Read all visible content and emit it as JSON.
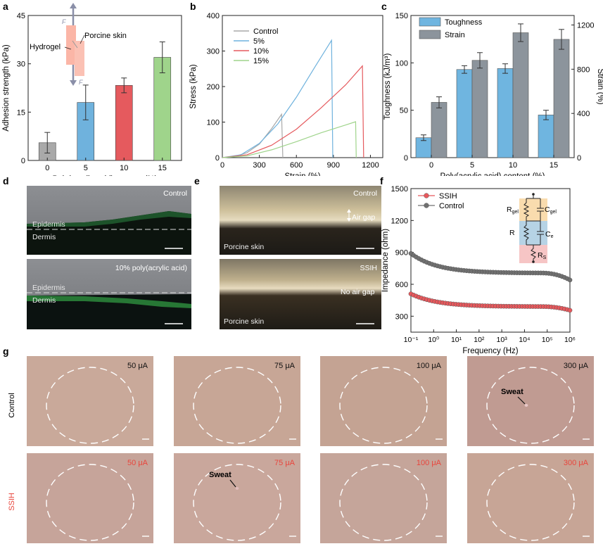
{
  "panels": {
    "a": {
      "letter": "a",
      "chart_index": 0,
      "inset": {
        "hydrogel": "Hydrogel",
        "porcine": "Porcine skin",
        "force": "F"
      }
    },
    "b": {
      "letter": "b",
      "chart_index": 1
    },
    "c": {
      "letter": "c",
      "chart_index": 2
    },
    "d": {
      "letter": "d",
      "top_label": "Control",
      "bottom_label": "10% poly(acrylic acid)",
      "epidermis": "Epidermis",
      "dermis": "Dermis"
    },
    "e": {
      "letter": "e",
      "top_label": "Control",
      "bottom_label": "SSIH",
      "air_gap": "Air gap",
      "no_air_gap": "No air gap",
      "skin": "Porcine skin"
    },
    "f": {
      "letter": "f",
      "chart_index": 3,
      "circuit": {
        "rgel": "R",
        "rgel_sub": "gel",
        "cgel": "C",
        "cgel_sub": "gel",
        "r": "R",
        "ce": "C",
        "ce_sub": "e",
        "rs": "R",
        "rs_sub": "S"
      }
    },
    "g": {
      "letter": "g",
      "row_control": "Control",
      "row_ssih": "SSIH",
      "currents": [
        "50 μA",
        "75 μA",
        "100 μA",
        "300 μA"
      ],
      "sweat": "Sweat"
    }
  },
  "colors": {
    "gray": "#a9a9a9",
    "blue": "#6fb2dd",
    "red": "#e55a5e",
    "green": "#9fd48b",
    "toughness": "#6fb5e0",
    "strain": "#8c949c",
    "ssih": "#e8585c",
    "control": "#707070",
    "red_text": "#e8453c"
  },
  "chart_data": [
    {
      "type": "bar",
      "panel": "a",
      "categories": [
        "0",
        "5",
        "10",
        "15"
      ],
      "values": [
        5.5,
        18,
        23.3,
        32
      ],
      "errors": [
        3.2,
        5.4,
        2.3,
        4.8
      ],
      "xlabel": "Poly(acrylic acid) content (%)",
      "ylabel": "Adhesion strength (kPa)",
      "ylim": [
        0,
        45
      ],
      "yticks": [
        0,
        15,
        30,
        45
      ]
    },
    {
      "type": "line",
      "panel": "b",
      "xlabel": "Strain (%)",
      "ylabel": "Stress (kPa)",
      "xlim": [
        0,
        1300
      ],
      "ylim": [
        0,
        400
      ],
      "xticks": [
        0,
        300,
        600,
        900,
        1200
      ],
      "yticks": [
        0,
        100,
        200,
        300,
        400
      ],
      "series": [
        {
          "name": "Control",
          "x": [
            0,
            100,
            200,
            300,
            400,
            480,
            490
          ],
          "y": [
            0,
            3,
            14,
            38,
            82,
            122,
            0
          ]
        },
        {
          "name": "5%",
          "x": [
            0,
            150,
            300,
            450,
            600,
            750,
            885,
            895
          ],
          "y": [
            0,
            8,
            40,
            95,
            170,
            255,
            330,
            0
          ]
        },
        {
          "name": "10%",
          "x": [
            0,
            200,
            400,
            600,
            800,
            1000,
            1135,
            1145
          ],
          "y": [
            0,
            8,
            35,
            80,
            140,
            205,
            258,
            0
          ]
        },
        {
          "name": "15%",
          "x": [
            0,
            200,
            400,
            600,
            800,
            1000,
            1080,
            1085
          ],
          "y": [
            0,
            5,
            22,
            45,
            70,
            92,
            101,
            0
          ]
        }
      ]
    },
    {
      "type": "bar",
      "panel": "c",
      "categories": [
        "0",
        "5",
        "10",
        "15"
      ],
      "series": [
        {
          "name": "Toughness",
          "axis": "left",
          "values": [
            21,
            93,
            94,
            45
          ],
          "errors": [
            3,
            4,
            5,
            5
          ]
        },
        {
          "name": "Strain",
          "axis": "right",
          "values": [
            500,
            880,
            1130,
            1070
          ],
          "errors": [
            50,
            70,
            80,
            90
          ]
        }
      ],
      "xlabel": "Poly(acrylic acid) content (%)",
      "ylabel": "Toughness (kJ/m³)",
      "ylabel_right": "Strain (%)",
      "ylim": [
        0,
        150
      ],
      "ylim_right": [
        0,
        1286
      ],
      "yticks": [
        0,
        50,
        100,
        150
      ],
      "yticks_right": [
        0,
        400,
        800,
        1200
      ]
    },
    {
      "type": "scatter",
      "panel": "f",
      "xlabel": "Frequency (Hz)",
      "ylabel": "Impedance (ohm)",
      "xscale": "log",
      "xlim_exp": [
        -1,
        6
      ],
      "ylim": [
        150,
        1500
      ],
      "yticks": [
        300,
        600,
        900,
        1200,
        1500
      ],
      "xtick_labels": [
        "10⁻¹",
        "10⁰",
        "10¹",
        "10²",
        "10³",
        "10⁴",
        "10⁵",
        "10⁶"
      ],
      "series": [
        {
          "name": "SSIH",
          "start": 510,
          "floor": 390,
          "end": 355
        },
        {
          "name": "Control",
          "start": 890,
          "floor": 705,
          "end": 640
        }
      ]
    }
  ]
}
